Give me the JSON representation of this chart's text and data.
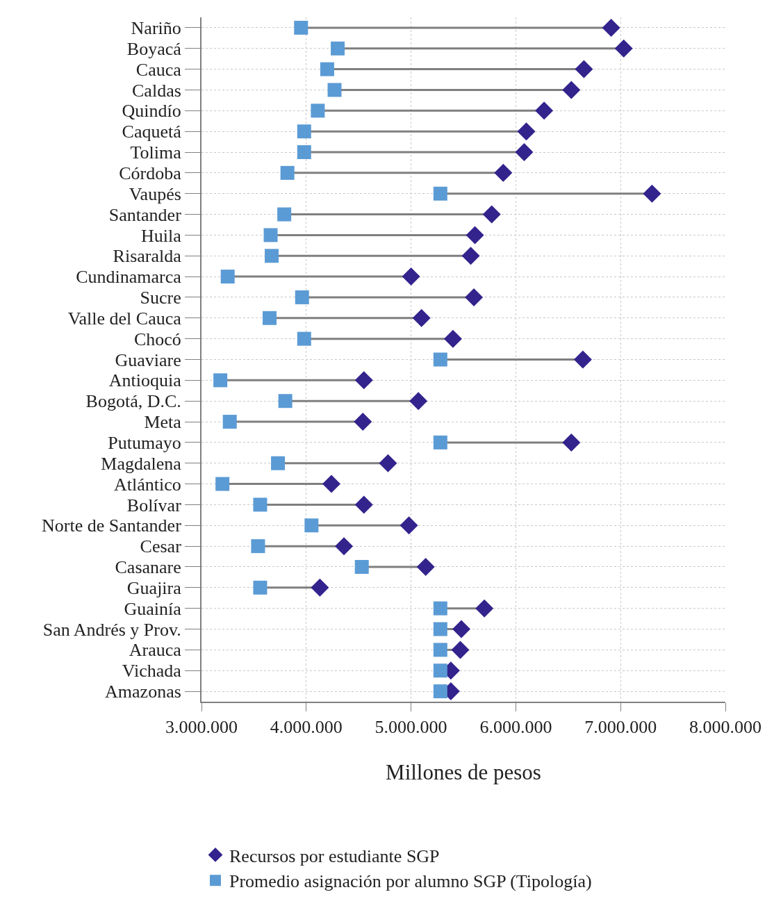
{
  "chart_data": {
    "type": "scatter",
    "orientation": "horizontal",
    "xlabel": "Millones de pesos",
    "categories": [
      "Nariño",
      "Boyacá",
      "Cauca",
      "Caldas",
      "Quindío",
      "Caquetá",
      "Tolima",
      "Córdoba",
      "Vaupés",
      "Santander",
      "Huila",
      "Risaralda",
      "Cundinamarca",
      "Sucre",
      "Valle del Cauca",
      "Chocó",
      "Guaviare",
      "Antioquia",
      "Bogotá, D.C.",
      "Meta",
      "Putumayo",
      "Magdalena",
      "Atlántico",
      "Bolívar",
      "Norte de Santander",
      "Cesar",
      "Casanare",
      "Guajira",
      "Guainía",
      "San Andrés y Prov.",
      "Arauca",
      "Vichada",
      "Amazonas"
    ],
    "series": [
      {
        "name": "Recursos por estudiante SGP",
        "color": "#33238c",
        "marker": "diamond",
        "values": [
          6910000,
          7030000,
          6650000,
          6530000,
          6270000,
          6100000,
          6080000,
          5880000,
          7300000,
          5770000,
          5610000,
          5570000,
          5000000,
          5600000,
          5100000,
          5400000,
          6640000,
          4550000,
          5070000,
          4540000,
          6530000,
          4780000,
          4240000,
          4550000,
          4980000,
          4360000,
          5140000,
          4130000,
          5700000,
          5480000,
          5470000,
          5380000,
          5380000
        ]
      },
      {
        "name": "Promedio asignación por alumno SGP (Tipología)",
        "color": "#5b9bd5",
        "marker": "square",
        "values": [
          3950000,
          4300000,
          4200000,
          4270000,
          4110000,
          3980000,
          3980000,
          3820000,
          5280000,
          3790000,
          3660000,
          3670000,
          3250000,
          3960000,
          3650000,
          3980000,
          5280000,
          3180000,
          3800000,
          3270000,
          5280000,
          3730000,
          3200000,
          3560000,
          4050000,
          3540000,
          4530000,
          3560000,
          5280000,
          5280000,
          5280000,
          5280000,
          5280000
        ]
      }
    ],
    "xlim": [
      3000000,
      8000000
    ],
    "xticks": [
      {
        "value": 3000000,
        "label": "3.000.000"
      },
      {
        "value": 4000000,
        "label": "4.000.000"
      },
      {
        "value": 5000000,
        "label": "5.000.000"
      },
      {
        "value": 6000000,
        "label": "6.000.000"
      },
      {
        "value": 7000000,
        "label": "7.000.000"
      },
      {
        "value": 8000000,
        "label": "8.000.000"
      }
    ],
    "grid": true,
    "line_style": "dotted",
    "legend": "bottom left"
  }
}
